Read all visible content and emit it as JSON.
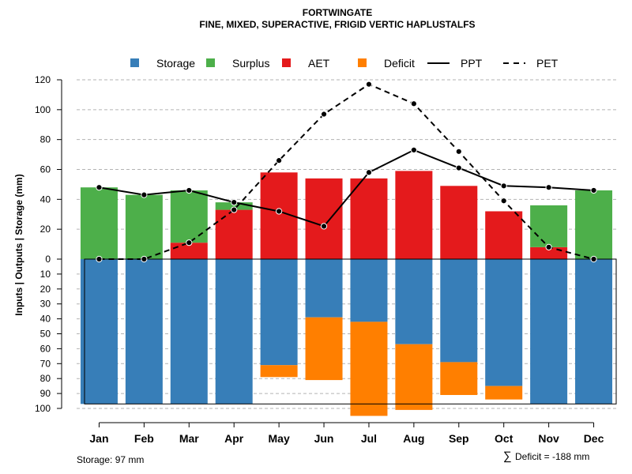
{
  "chart_data": {
    "type": "bar",
    "title": "FORTWINGATE",
    "subtitle": "FINE, MIXED, SUPERACTIVE, FRIGID VERTIC HAPLUSTALFS",
    "ylabel": "Inputs | Outputs | Storage    (mm)",
    "categories": [
      "Jan",
      "Feb",
      "Mar",
      "Apr",
      "May",
      "Jun",
      "Jul",
      "Aug",
      "Sep",
      "Oct",
      "Nov",
      "Dec"
    ],
    "upper_axis": {
      "ylim": [
        0,
        120
      ],
      "ticks": [
        "0",
        "20",
        "40",
        "60",
        "80",
        "100",
        "120"
      ],
      "tick_values": [
        0,
        20,
        40,
        60,
        80,
        100,
        120
      ]
    },
    "lower_axis": {
      "ylim": [
        0,
        100
      ],
      "ticks": [
        "10",
        "20",
        "30",
        "40",
        "50",
        "60",
        "70",
        "80",
        "90",
        "100"
      ],
      "tick_values": [
        10,
        20,
        30,
        40,
        50,
        60,
        70,
        80,
        90,
        100
      ]
    },
    "series": [
      {
        "name": "Storage",
        "kind": "bar-down",
        "color": "#377eb8",
        "values": [
          97,
          97,
          97,
          97,
          71,
          39,
          42,
          57,
          69,
          85,
          97,
          97
        ]
      },
      {
        "name": "Deficit",
        "kind": "bar-down-stacked",
        "color": "#ff7f00",
        "values": [
          0,
          0,
          0,
          0,
          8,
          42,
          63,
          44,
          22,
          9,
          0,
          0
        ]
      },
      {
        "name": "AET",
        "kind": "bar-up",
        "color": "#e41a1c",
        "values": [
          0,
          0,
          11,
          33,
          58,
          54,
          54,
          59,
          49,
          32,
          8,
          0
        ]
      },
      {
        "name": "Surplus",
        "kind": "bar-up-stacked",
        "color": "#4daf4a",
        "values": [
          48,
          43,
          35,
          5,
          0,
          0,
          0,
          0,
          0,
          0,
          28,
          46
        ]
      },
      {
        "name": "PPT",
        "kind": "line-solid",
        "color": "#000000",
        "values": [
          48,
          43,
          46,
          38,
          32,
          22,
          58,
          73,
          61,
          49,
          48,
          46
        ]
      },
      {
        "name": "PET",
        "kind": "line-dashed",
        "color": "#000000",
        "values": [
          0,
          0,
          11,
          33,
          66,
          97,
          117,
          104,
          72,
          39,
          8,
          0
        ]
      }
    ],
    "legend": {
      "placement": "top",
      "items": [
        {
          "label": "Storage",
          "swatch": "square",
          "color": "#377eb8"
        },
        {
          "label": "Surplus",
          "swatch": "square",
          "color": "#4daf4a"
        },
        {
          "label": "AET",
          "swatch": "square",
          "color": "#e41a1c"
        },
        {
          "label": "Deficit",
          "swatch": "square",
          "color": "#ff7f00"
        },
        {
          "label": "PPT",
          "swatch": "solid-line",
          "color": "#000000"
        },
        {
          "label": "PET",
          "swatch": "dashed-line",
          "color": "#000000"
        }
      ]
    },
    "annotations": {
      "storage": "Storage: 97 mm",
      "deficit_symbol": "∑",
      "deficit": "Deficit = -188 mm"
    }
  }
}
